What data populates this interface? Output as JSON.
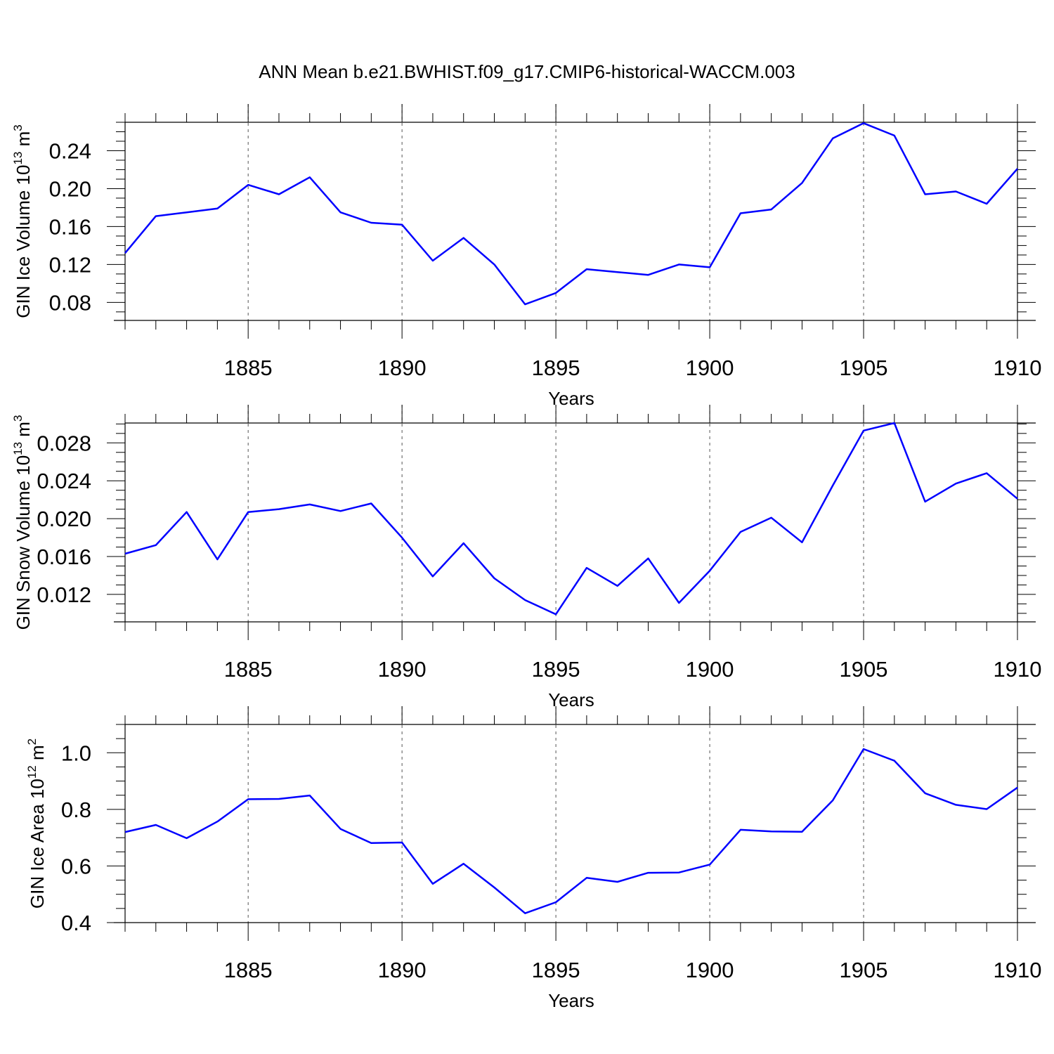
{
  "title": "ANN Mean b.e21.BWHIST.f09_g17.CMIP6-historical-WACCM.003",
  "colors": {
    "series": "#0000ff",
    "axes": "#000000",
    "grid": "#555555"
  },
  "chart_data": [
    {
      "type": "line",
      "name": "panel-ice-volume",
      "title": "",
      "ylabel": {
        "base": "GIN Ice Volume 10",
        "exp": "13",
        "unit": " m",
        "unit_exp": "3"
      },
      "xlabel": "Years",
      "xlim": [
        1881,
        1910
      ],
      "ylim": [
        0.061,
        0.27
      ],
      "xticks": [
        1885,
        1890,
        1895,
        1900,
        1905,
        1910
      ],
      "xtick_labels": [
        "1885",
        "1890",
        "1895",
        "1900",
        "1905",
        "1910"
      ],
      "yticks": [
        0.08,
        0.12,
        0.16,
        0.2,
        0.24
      ],
      "ytick_labels": [
        "0.08",
        "0.12",
        "0.16",
        "0.20",
        "0.24"
      ],
      "x": [
        1881,
        1882,
        1883,
        1884,
        1885,
        1886,
        1887,
        1888,
        1889,
        1890,
        1891,
        1892,
        1893,
        1894,
        1895,
        1896,
        1897,
        1898,
        1899,
        1900,
        1901,
        1902,
        1903,
        1904,
        1905,
        1906,
        1907,
        1908,
        1909,
        1910
      ],
      "y": [
        0.132,
        0.171,
        0.175,
        0.179,
        0.204,
        0.194,
        0.212,
        0.175,
        0.164,
        0.162,
        0.124,
        0.148,
        0.12,
        0.078,
        0.09,
        0.115,
        0.112,
        0.109,
        0.12,
        0.117,
        0.174,
        0.178,
        0.206,
        0.253,
        0.269,
        0.256,
        0.194,
        0.197,
        0.184,
        0.221
      ],
      "series_name": "GIN Ice Volume"
    },
    {
      "type": "line",
      "name": "panel-snow-volume",
      "title": "",
      "ylabel": {
        "base": "GIN Snow Volume 10",
        "exp": "13",
        "unit": " m",
        "unit_exp": "3"
      },
      "xlabel": "Years",
      "xlim": [
        1881,
        1910
      ],
      "ylim": [
        0.0091,
        0.0301
      ],
      "xticks": [
        1885,
        1890,
        1895,
        1900,
        1905,
        1910
      ],
      "xtick_labels": [
        "1885",
        "1890",
        "1895",
        "1900",
        "1905",
        "1910"
      ],
      "yticks": [
        0.012,
        0.016,
        0.02,
        0.024,
        0.028
      ],
      "ytick_labels": [
        "0.012",
        "0.016",
        "0.020",
        "0.024",
        "0.028"
      ],
      "x": [
        1881,
        1882,
        1883,
        1884,
        1885,
        1886,
        1887,
        1888,
        1889,
        1890,
        1891,
        1892,
        1893,
        1894,
        1895,
        1896,
        1897,
        1898,
        1899,
        1900,
        1901,
        1902,
        1903,
        1904,
        1905,
        1906,
        1907,
        1908,
        1909,
        1910
      ],
      "y": [
        0.0163,
        0.0172,
        0.0207,
        0.0157,
        0.0207,
        0.021,
        0.0215,
        0.0208,
        0.0216,
        0.018,
        0.0139,
        0.0174,
        0.0137,
        0.0114,
        0.0099,
        0.0148,
        0.0129,
        0.0158,
        0.0111,
        0.0145,
        0.0186,
        0.0201,
        0.0175,
        0.0235,
        0.0293,
        0.0301,
        0.0218,
        0.0237,
        0.0248,
        0.0221
      ],
      "series_name": "GIN Snow Volume"
    },
    {
      "type": "line",
      "name": "panel-ice-area",
      "title": "",
      "ylabel": {
        "base": "GIN Ice Area 10",
        "exp": "12",
        "unit": " m",
        "unit_exp": "2"
      },
      "xlabel": "Years",
      "xlim": [
        1881,
        1910
      ],
      "ylim": [
        0.4,
        1.1
      ],
      "xticks": [
        1885,
        1890,
        1895,
        1900,
        1905,
        1910
      ],
      "xtick_labels": [
        "1885",
        "1890",
        "1895",
        "1900",
        "1905",
        "1910"
      ],
      "yticks": [
        0.4,
        0.6,
        0.8,
        1.0
      ],
      "ytick_labels": [
        "0.4",
        "0.6",
        "0.8",
        "1.0"
      ],
      "x": [
        1881,
        1882,
        1883,
        1884,
        1885,
        1886,
        1887,
        1888,
        1889,
        1890,
        1891,
        1892,
        1893,
        1894,
        1895,
        1896,
        1897,
        1898,
        1899,
        1900,
        1901,
        1902,
        1903,
        1904,
        1905,
        1906,
        1907,
        1908,
        1909,
        1910
      ],
      "y": [
        0.72,
        0.745,
        0.698,
        0.757,
        0.836,
        0.837,
        0.849,
        0.731,
        0.681,
        0.683,
        0.537,
        0.608,
        0.524,
        0.433,
        0.472,
        0.558,
        0.544,
        0.576,
        0.577,
        0.605,
        0.728,
        0.722,
        0.721,
        0.832,
        1.013,
        0.972,
        0.857,
        0.816,
        0.801,
        0.877
      ],
      "series_name": "GIN Ice Area"
    }
  ]
}
